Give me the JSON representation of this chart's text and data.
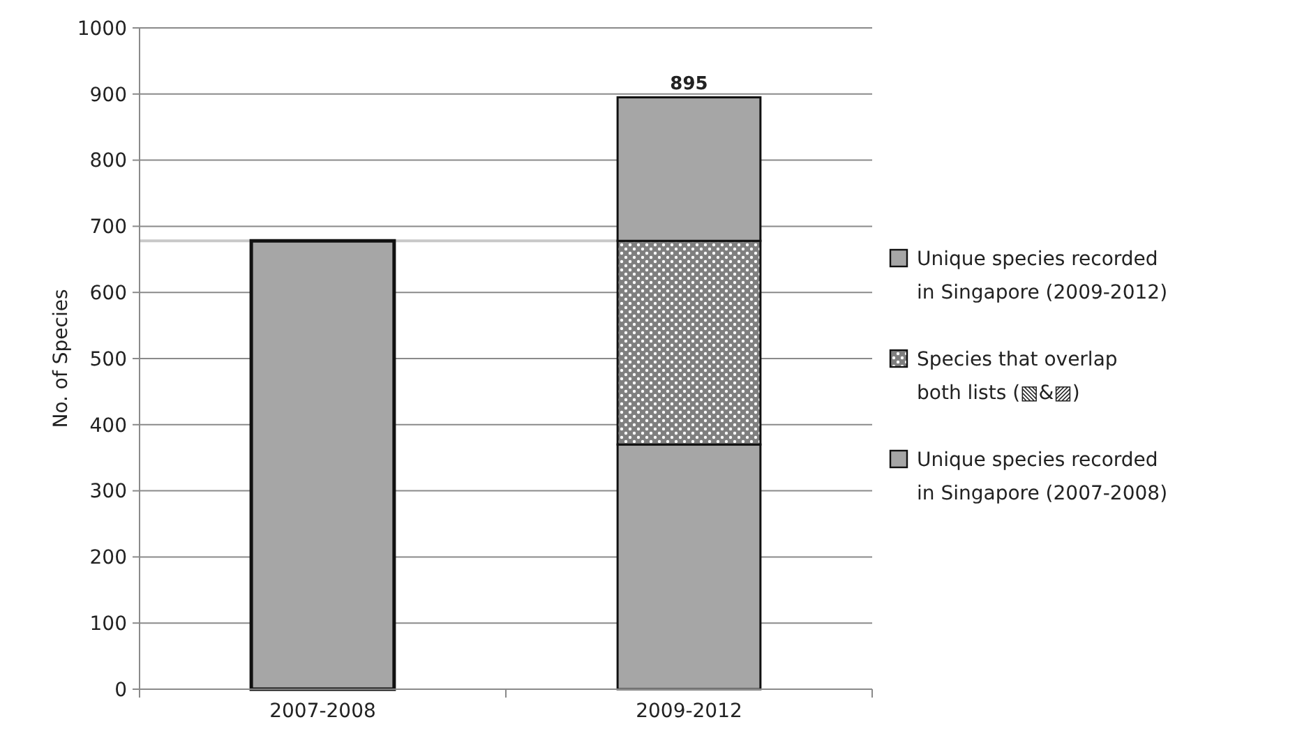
{
  "chart_data": {
    "type": "bar",
    "stacked": true,
    "ylabel": "No. of Species",
    "categories": [
      "2007-2008",
      "2009-2012"
    ],
    "series": [
      {
        "name": "Unique species recorded in Singapore (2007-2008)",
        "color": "#a6a6a6",
        "values": [
          678,
          370
        ]
      },
      {
        "name": "Species that overlap both lists (▧&▨)",
        "color": "#7f7f7f",
        "values": [
          0,
          308
        ]
      },
      {
        "name": "Unique species recorded in Singapore (2009-2012)",
        "color": "#a6a6a6",
        "values": [
          0,
          217
        ]
      }
    ],
    "totals": [
      null,
      "895"
    ],
    "ylim": [
      0,
      1000
    ],
    "yticks": [
      0,
      100,
      200,
      300,
      400,
      500,
      600,
      700,
      800,
      900,
      1000
    ],
    "grid": "y",
    "legend": "right",
    "ref_lines": [
      {
        "axis": "y",
        "value": 678,
        "color": "#c8c8c8"
      }
    ]
  }
}
